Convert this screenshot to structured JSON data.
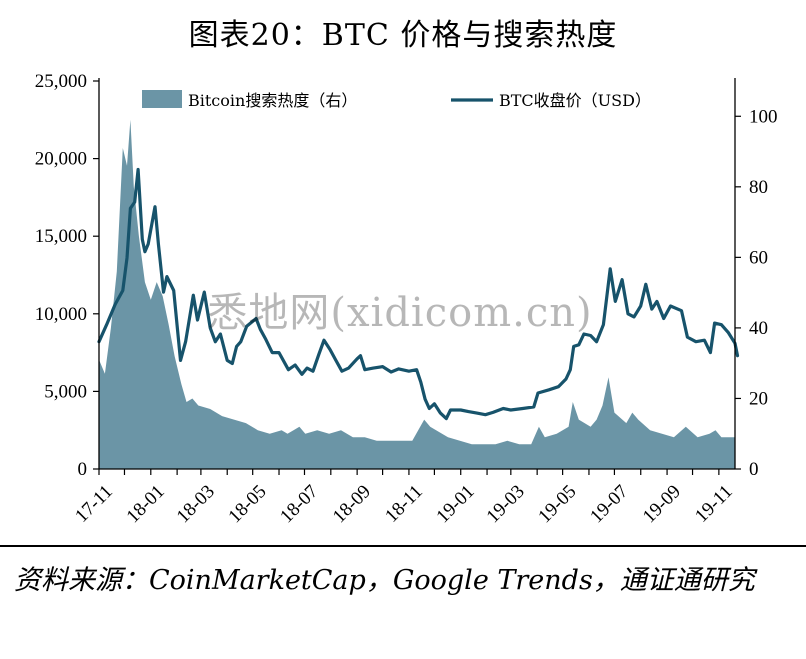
{
  "title": "图表20：BTC 价格与搜索热度",
  "source": "资料来源：CoinMarketCap，Google Trends，通证通研究",
  "watermark": "悉地网(xidicom.cn)",
  "colors": {
    "area": "#6b95a6",
    "line": "#17536b",
    "axis": "#000000"
  },
  "chart_data": {
    "type": "area+line",
    "legend": {
      "placement": "top",
      "entries": [
        "Bitcoin搜索热度（右）",
        "BTC收盘价（USD）"
      ]
    },
    "x_ticks": [
      "17-11",
      "18-01",
      "18-03",
      "18-05",
      "18-07",
      "18-09",
      "18-11",
      "19-01",
      "19-03",
      "19-05",
      "19-07",
      "19-09",
      "19-11"
    ],
    "x_domain": [
      "2017-11-01",
      "2019-11-20"
    ],
    "y_left": {
      "ylim": [
        0,
        25000
      ],
      "ticks": [
        "0",
        "5,000",
        "10,000",
        "15,000",
        "20,000",
        "25,000"
      ]
    },
    "y_right": {
      "ylim": [
        0,
        110
      ],
      "ticks": [
        "0",
        "20",
        "40",
        "60",
        "80",
        "100"
      ]
    },
    "series": [
      {
        "name": "Bitcoin搜索热度（右）",
        "kind": "area",
        "axis": "right",
        "data": [
          [
            "2017-11-01",
            31
          ],
          [
            "2017-11-08",
            27
          ],
          [
            "2017-11-15",
            40
          ],
          [
            "2017-11-22",
            56
          ],
          [
            "2017-11-29",
            91
          ],
          [
            "2017-12-04",
            86
          ],
          [
            "2017-12-08",
            99
          ],
          [
            "2017-12-12",
            80
          ],
          [
            "2017-12-18",
            66
          ],
          [
            "2017-12-25",
            53
          ],
          [
            "2018-01-01",
            48
          ],
          [
            "2018-01-08",
            53
          ],
          [
            "2018-01-15",
            49
          ],
          [
            "2018-01-22",
            41
          ],
          [
            "2018-01-29",
            32
          ],
          [
            "2018-02-06",
            24
          ],
          [
            "2018-02-12",
            19
          ],
          [
            "2018-02-19",
            20
          ],
          [
            "2018-02-26",
            18
          ],
          [
            "2018-03-12",
            17
          ],
          [
            "2018-03-26",
            15
          ],
          [
            "2018-04-09",
            14
          ],
          [
            "2018-04-23",
            13
          ],
          [
            "2018-05-07",
            11
          ],
          [
            "2018-05-21",
            10
          ],
          [
            "2018-06-04",
            11
          ],
          [
            "2018-06-11",
            10
          ],
          [
            "2018-06-18",
            11
          ],
          [
            "2018-06-25",
            12
          ],
          [
            "2018-07-02",
            10
          ],
          [
            "2018-07-16",
            11
          ],
          [
            "2018-07-30",
            10
          ],
          [
            "2018-08-13",
            11
          ],
          [
            "2018-08-27",
            9
          ],
          [
            "2018-09-10",
            9
          ],
          [
            "2018-09-24",
            8
          ],
          [
            "2018-10-08",
            8
          ],
          [
            "2018-10-22",
            8
          ],
          [
            "2018-11-05",
            8
          ],
          [
            "2018-11-19",
            14
          ],
          [
            "2018-11-26",
            12
          ],
          [
            "2018-12-03",
            11
          ],
          [
            "2018-12-17",
            9
          ],
          [
            "2018-12-31",
            8
          ],
          [
            "2019-01-14",
            7
          ],
          [
            "2019-01-28",
            7
          ],
          [
            "2019-02-11",
            7
          ],
          [
            "2019-02-25",
            8
          ],
          [
            "2019-03-11",
            7
          ],
          [
            "2019-03-25",
            7
          ],
          [
            "2019-04-03",
            12
          ],
          [
            "2019-04-10",
            9
          ],
          [
            "2019-04-24",
            10
          ],
          [
            "2019-05-08",
            12
          ],
          [
            "2019-05-13",
            19
          ],
          [
            "2019-05-20",
            14
          ],
          [
            "2019-06-03",
            12
          ],
          [
            "2019-06-10",
            14
          ],
          [
            "2019-06-17",
            18
          ],
          [
            "2019-06-24",
            26
          ],
          [
            "2019-07-01",
            16
          ],
          [
            "2019-07-15",
            13
          ],
          [
            "2019-07-22",
            16
          ],
          [
            "2019-07-29",
            14
          ],
          [
            "2019-08-12",
            11
          ],
          [
            "2019-08-26",
            10
          ],
          [
            "2019-09-09",
            9
          ],
          [
            "2019-09-23",
            12
          ],
          [
            "2019-10-07",
            9
          ],
          [
            "2019-10-21",
            10
          ],
          [
            "2019-10-28",
            11
          ],
          [
            "2019-11-04",
            9
          ],
          [
            "2019-11-20",
            9
          ]
        ]
      },
      {
        "name": "BTC收盘价（USD）",
        "kind": "line",
        "axis": "left",
        "data": [
          [
            "2017-11-01",
            8200
          ],
          [
            "2017-11-10",
            9300
          ],
          [
            "2017-11-20",
            10600
          ],
          [
            "2017-11-29",
            11500
          ],
          [
            "2017-12-04",
            13600
          ],
          [
            "2017-12-08",
            16800
          ],
          [
            "2017-12-13",
            17200
          ],
          [
            "2017-12-17",
            19300
          ],
          [
            "2017-12-22",
            14800
          ],
          [
            "2017-12-25",
            14000
          ],
          [
            "2017-12-29",
            14500
          ],
          [
            "2018-01-06",
            16900
          ],
          [
            "2018-01-10",
            14500
          ],
          [
            "2018-01-16",
            11400
          ],
          [
            "2018-01-20",
            12400
          ],
          [
            "2018-01-28",
            11500
          ],
          [
            "2018-02-05",
            7000
          ],
          [
            "2018-02-11",
            8200
          ],
          [
            "2018-02-20",
            11200
          ],
          [
            "2018-02-25",
            9600
          ],
          [
            "2018-03-05",
            11400
          ],
          [
            "2018-03-12",
            9100
          ],
          [
            "2018-03-18",
            8200
          ],
          [
            "2018-03-24",
            8700
          ],
          [
            "2018-04-01",
            7000
          ],
          [
            "2018-04-07",
            6800
          ],
          [
            "2018-04-12",
            7900
          ],
          [
            "2018-04-17",
            8200
          ],
          [
            "2018-04-24",
            9200
          ],
          [
            "2018-05-05",
            9700
          ],
          [
            "2018-05-10",
            9000
          ],
          [
            "2018-05-16",
            8400
          ],
          [
            "2018-05-24",
            7500
          ],
          [
            "2018-06-01",
            7500
          ],
          [
            "2018-06-12",
            6400
          ],
          [
            "2018-06-20",
            6700
          ],
          [
            "2018-06-28",
            6100
          ],
          [
            "2018-07-04",
            6500
          ],
          [
            "2018-07-11",
            6300
          ],
          [
            "2018-07-18",
            7400
          ],
          [
            "2018-07-24",
            8300
          ],
          [
            "2018-07-31",
            7700
          ],
          [
            "2018-08-07",
            7000
          ],
          [
            "2018-08-14",
            6300
          ],
          [
            "2018-08-22",
            6500
          ],
          [
            "2018-09-01",
            7100
          ],
          [
            "2018-09-05",
            7300
          ],
          [
            "2018-09-10",
            6400
          ],
          [
            "2018-09-20",
            6500
          ],
          [
            "2018-10-01",
            6600
          ],
          [
            "2018-10-11",
            6250
          ],
          [
            "2018-10-20",
            6450
          ],
          [
            "2018-11-01",
            6300
          ],
          [
            "2018-11-10",
            6400
          ],
          [
            "2018-11-15",
            5600
          ],
          [
            "2018-11-20",
            4500
          ],
          [
            "2018-11-25",
            3900
          ],
          [
            "2018-12-01",
            4200
          ],
          [
            "2018-12-08",
            3600
          ],
          [
            "2018-12-15",
            3250
          ],
          [
            "2018-12-20",
            3800
          ],
          [
            "2019-01-01",
            3800
          ],
          [
            "2019-01-10",
            3700
          ],
          [
            "2019-01-20",
            3600
          ],
          [
            "2019-01-30",
            3500
          ],
          [
            "2019-02-08",
            3650
          ],
          [
            "2019-02-20",
            3900
          ],
          [
            "2019-03-01",
            3800
          ],
          [
            "2019-03-15",
            3900
          ],
          [
            "2019-03-28",
            4000
          ],
          [
            "2019-04-02",
            4900
          ],
          [
            "2019-04-15",
            5100
          ],
          [
            "2019-04-26",
            5300
          ],
          [
            "2019-05-05",
            5800
          ],
          [
            "2019-05-10",
            6400
          ],
          [
            "2019-05-14",
            7900
          ],
          [
            "2019-05-20",
            8000
          ],
          [
            "2019-05-26",
            8700
          ],
          [
            "2019-06-03",
            8600
          ],
          [
            "2019-06-10",
            8200
          ],
          [
            "2019-06-18",
            9300
          ],
          [
            "2019-06-26",
            12900
          ],
          [
            "2019-07-02",
            10800
          ],
          [
            "2019-07-10",
            12200
          ],
          [
            "2019-07-17",
            10000
          ],
          [
            "2019-07-24",
            9800
          ],
          [
            "2019-08-01",
            10500
          ],
          [
            "2019-08-07",
            11900
          ],
          [
            "2019-08-14",
            10300
          ],
          [
            "2019-08-20",
            10800
          ],
          [
            "2019-08-28",
            9700
          ],
          [
            "2019-09-05",
            10500
          ],
          [
            "2019-09-18",
            10200
          ],
          [
            "2019-09-25",
            8500
          ],
          [
            "2019-10-05",
            8200
          ],
          [
            "2019-10-15",
            8300
          ],
          [
            "2019-10-22",
            7500
          ],
          [
            "2019-10-27",
            9400
          ],
          [
            "2019-11-04",
            9300
          ],
          [
            "2019-11-12",
            8800
          ],
          [
            "2019-11-20",
            8100
          ],
          [
            "2019-11-23",
            7300
          ]
        ]
      }
    ]
  }
}
